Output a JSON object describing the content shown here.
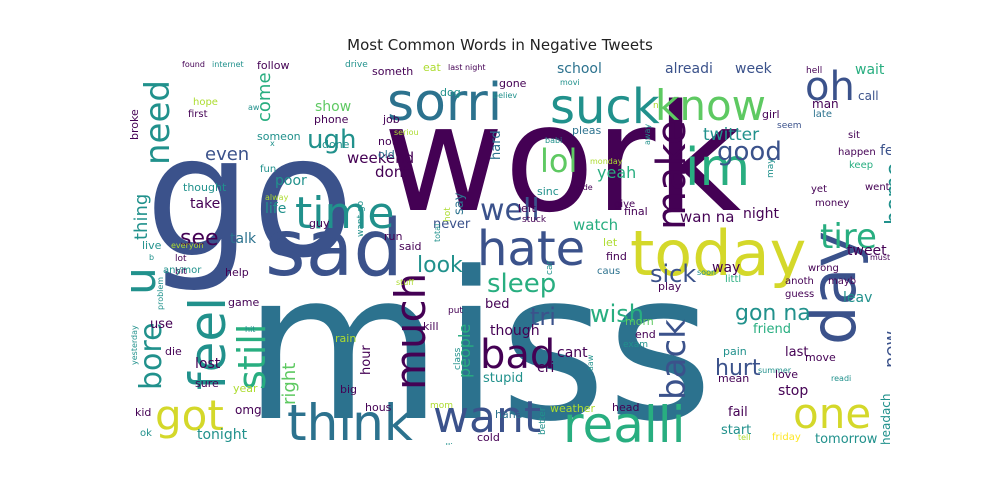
{
  "title": "Most Common Words in Negative Tweets",
  "colors": {
    "background": "#ffffff",
    "title_text": "#222222",
    "palette": [
      "#440154",
      "#3b528b",
      "#2c728e",
      "#21918c",
      "#28ae80",
      "#5ec962",
      "#addc30",
      "#fde725"
    ]
  },
  "words": [
    {
      "text": "miss",
      "weight": 1.0,
      "color": "#2c728e"
    },
    {
      "text": "work",
      "weight": 0.9,
      "color": "#440154"
    },
    {
      "text": "go",
      "weight": 0.85,
      "color": "#3b528b"
    },
    {
      "text": "sad",
      "weight": 0.55,
      "color": "#3b528b"
    },
    {
      "text": "today",
      "weight": 0.52,
      "color": "#d4d82a"
    },
    {
      "text": "day",
      "weight": 0.45,
      "color": "#3b528b"
    },
    {
      "text": "im",
      "weight": 0.42,
      "color": "#28ae80"
    },
    {
      "text": "feel",
      "weight": 0.42,
      "color": "#21918c"
    },
    {
      "text": "sorri",
      "weight": 0.4,
      "color": "#2c728e"
    },
    {
      "text": "suck",
      "weight": 0.38,
      "color": "#21918c"
    },
    {
      "text": "think",
      "weight": 0.38,
      "color": "#2c728e"
    },
    {
      "text": "realli",
      "weight": 0.36,
      "color": "#28ae80"
    },
    {
      "text": "hate",
      "weight": 0.36,
      "color": "#3b528b"
    },
    {
      "text": "time",
      "weight": 0.33,
      "color": "#21918c"
    },
    {
      "text": "know",
      "weight": 0.33,
      "color": "#5ec962"
    },
    {
      "text": "want",
      "weight": 0.33,
      "color": "#3b528b"
    },
    {
      "text": "got",
      "weight": 0.3,
      "color": "#d4d82a"
    },
    {
      "text": "one",
      "weight": 0.3,
      "color": "#d4d82a"
    },
    {
      "text": "much",
      "weight": 0.3,
      "color": "#440154"
    },
    {
      "text": "still",
      "weight": 0.3,
      "color": "#28ae80"
    },
    {
      "text": "bad",
      "weight": 0.28,
      "color": "#440154"
    },
    {
      "text": "oh",
      "weight": 0.28,
      "color": "#3b528b"
    },
    {
      "text": "make",
      "weight": 0.28,
      "color": "#440154"
    },
    {
      "text": "u",
      "weight": 0.28,
      "color": "#21918c"
    },
    {
      "text": "tire",
      "weight": 0.26,
      "color": "#28ae80"
    },
    {
      "text": "need",
      "weight": 0.26,
      "color": "#21918c"
    },
    {
      "text": "back",
      "weight": 0.25,
      "color": "#3b528b"
    },
    {
      "text": "bore",
      "weight": 0.24,
      "color": "#21918c"
    },
    {
      "text": "lol",
      "weight": 0.22,
      "color": "#5ec962"
    },
    {
      "text": "well",
      "weight": 0.2,
      "color": "#3b528b"
    },
    {
      "text": "good",
      "weight": 0.2,
      "color": "#3b528b"
    },
    {
      "text": "ugh",
      "weight": 0.18,
      "color": "#21918c"
    },
    {
      "text": "sleep",
      "weight": 0.18,
      "color": "#28ae80"
    },
    {
      "text": "look",
      "weight": 0.17,
      "color": "#21918c"
    },
    {
      "text": "wish",
      "weight": 0.17,
      "color": "#28ae80"
    },
    {
      "text": "gon na",
      "weight": 0.17,
      "color": "#21918c"
    },
    {
      "text": "sick",
      "weight": 0.17,
      "color": "#3b528b"
    },
    {
      "text": "see",
      "weight": 0.16,
      "color": "#440154"
    },
    {
      "text": "home",
      "weight": 0.16,
      "color": "#21918c"
    },
    {
      "text": "hurt",
      "weight": 0.16,
      "color": "#3b528b"
    },
    {
      "text": "tri",
      "weight": 0.16,
      "color": "#3b528b"
    },
    {
      "text": "come",
      "weight": 0.15,
      "color": "#28ae80"
    },
    {
      "text": "right",
      "weight": 0.15,
      "color": "#5ec962"
    },
    {
      "text": "thing",
      "weight": 0.14,
      "color": "#21918c"
    },
    {
      "text": "even",
      "weight": 0.14,
      "color": "#3b528b"
    },
    {
      "text": "new",
      "weight": 0.14,
      "color": "#3b528b"
    },
    {
      "text": "people",
      "weight": 0.14,
      "color": "#28ae80"
    },
    {
      "text": "twitter",
      "weight": 0.13,
      "color": "#21918c"
    },
    {
      "text": "yeah",
      "weight": 0.12,
      "color": "#28ae80"
    },
    {
      "text": "dont",
      "weight": 0.12,
      "color": "#440154"
    },
    {
      "text": "wait",
      "weight": 0.12,
      "color": "#28ae80"
    },
    {
      "text": "alreadi",
      "weight": 0.12,
      "color": "#3b528b"
    },
    {
      "text": "week",
      "weight": 0.12,
      "color": "#3b528b"
    },
    {
      "text": "school",
      "weight": 0.12,
      "color": "#2c728e"
    },
    {
      "text": "show",
      "weight": 0.11,
      "color": "#5ec962"
    },
    {
      "text": "weekend",
      "weight": 0.11,
      "color": "#440154"
    },
    {
      "text": "poor",
      "weight": 0.11,
      "color": "#21918c"
    },
    {
      "text": "take",
      "weight": 0.11,
      "color": "#440154"
    },
    {
      "text": "life",
      "weight": 0.11,
      "color": "#21918c"
    },
    {
      "text": "talk",
      "weight": 0.11,
      "color": "#2c728e"
    },
    {
      "text": "hard",
      "weight": 0.1,
      "color": "#2c728e"
    },
    {
      "text": "wan na",
      "weight": 0.11,
      "color": "#440154"
    },
    {
      "text": "night",
      "weight": 0.11,
      "color": "#440154"
    },
    {
      "text": "watch",
      "weight": 0.12,
      "color": "#28ae80"
    },
    {
      "text": "never",
      "weight": 0.11,
      "color": "#3b528b"
    },
    {
      "text": "say",
      "weight": 0.1,
      "color": "#2c728e"
    },
    {
      "text": "way",
      "weight": 0.11,
      "color": "#440154"
    },
    {
      "text": "tweet",
      "weight": 0.11,
      "color": "#440154"
    },
    {
      "text": "leav",
      "weight": 0.11,
      "color": "#21918c"
    },
    {
      "text": "bed",
      "weight": 0.11,
      "color": "#440154"
    },
    {
      "text": "though",
      "weight": 0.11,
      "color": "#440154"
    },
    {
      "text": "cant",
      "weight": 0.11,
      "color": "#440154"
    },
    {
      "text": "cri",
      "weight": 0.11,
      "color": "#440154"
    },
    {
      "text": "stupid",
      "weight": 0.11,
      "color": "#21918c"
    },
    {
      "text": "last",
      "weight": 0.11,
      "color": "#440154"
    },
    {
      "text": "stop",
      "weight": 0.11,
      "color": "#440154"
    },
    {
      "text": "friend",
      "weight": 0.11,
      "color": "#28ae80"
    },
    {
      "text": "lost",
      "weight": 0.11,
      "color": "#440154"
    },
    {
      "text": "omg",
      "weight": 0.1,
      "color": "#440154"
    },
    {
      "text": "tonight",
      "weight": 0.11,
      "color": "#21918c"
    },
    {
      "text": "use",
      "weight": 0.1,
      "color": "#440154"
    },
    {
      "text": "hour",
      "weight": 0.1,
      "color": "#440154"
    },
    {
      "text": "fail",
      "weight": 0.1,
      "color": "#440154"
    },
    {
      "text": "start",
      "weight": 0.1,
      "color": "#21918c"
    },
    {
      "text": "tomorrow",
      "weight": 0.1,
      "color": "#21918c"
    },
    {
      "text": "headach",
      "weight": 0.1,
      "color": "#21918c"
    },
    {
      "text": "call",
      "weight": 0.1,
      "color": "#3b528b"
    },
    {
      "text": "man",
      "weight": 0.1,
      "color": "#440154"
    },
    {
      "text": "happen",
      "weight": 0.1,
      "color": "#440154"
    },
    {
      "text": "sit",
      "weight": 0.09,
      "color": "#440154"
    },
    {
      "text": "feel",
      "weight": 0.09,
      "color": "#3b528b"
    },
    {
      "text": "went",
      "weight": 0.09,
      "color": "#440154"
    },
    {
      "text": "keep",
      "weight": 0.08,
      "color": "#28ae80"
    },
    {
      "text": "late",
      "weight": 0.08,
      "color": "#2c728e"
    },
    {
      "text": "girl",
      "weight": 0.08,
      "color": "#440154"
    },
    {
      "text": "seem",
      "weight": 0.08,
      "color": "#3b528b"
    },
    {
      "text": "pleas",
      "weight": 0.08,
      "color": "#2c728e"
    },
    {
      "text": "hell",
      "weight": 0.07,
      "color": "#440154"
    },
    {
      "text": "long",
      "weight": 0.07,
      "color": "#2c728e"
    },
    {
      "text": "money",
      "weight": 0.07,
      "color": "#440154"
    },
    {
      "text": "yet",
      "weight": 0.07,
      "color": "#440154"
    },
    {
      "text": "may",
      "weight": 0.07,
      "color": "#21918c"
    },
    {
      "text": "must",
      "weight": 0.06,
      "color": "#440154"
    },
    {
      "text": "without",
      "weight": 0.07,
      "color": "#2c728e"
    },
    {
      "text": "wrong",
      "weight": 0.07,
      "color": "#440154"
    },
    {
      "text": "littl",
      "weight": 0.07,
      "color": "#28ae80"
    },
    {
      "text": "anoth",
      "weight": 0.07,
      "color": "#440154"
    },
    {
      "text": "guess",
      "weight": 0.07,
      "color": "#440154"
    },
    {
      "text": "mayb",
      "weight": 0.07,
      "color": "#440154"
    },
    {
      "text": "summer",
      "weight": 0.06,
      "color": "#21918c"
    },
    {
      "text": "readi",
      "weight": 0.06,
      "color": "#21918c"
    },
    {
      "text": "love",
      "weight": 0.07,
      "color": "#440154"
    },
    {
      "text": "move",
      "weight": 0.07,
      "color": "#440154"
    },
    {
      "text": "friday",
      "weight": 0.07,
      "color": "#fde725"
    },
    {
      "text": "mean",
      "weight": 0.07,
      "color": "#440154"
    },
    {
      "text": "pain",
      "weight": 0.07,
      "color": "#21918c"
    },
    {
      "text": "head",
      "weight": 0.07,
      "color": "#440154"
    },
    {
      "text": "weather",
      "weight": 0.07,
      "color": "#addc30"
    },
    {
      "text": "better",
      "weight": 0.06,
      "color": "#21918c"
    },
    {
      "text": "tell",
      "weight": 0.06,
      "color": "#addc30"
    },
    {
      "text": "haha",
      "weight": 0.07,
      "color": "#2c728e"
    },
    {
      "text": "cold",
      "weight": 0.07,
      "color": "#440154"
    },
    {
      "text": "sadli",
      "weight": 0.06,
      "color": "#21918c"
    },
    {
      "text": "mom",
      "weight": 0.06,
      "color": "#addc30"
    },
    {
      "text": "hous",
      "weight": 0.07,
      "color": "#440154"
    },
    {
      "text": "big",
      "weight": 0.07,
      "color": "#440154"
    },
    {
      "text": "rain",
      "weight": 0.07,
      "color": "#addc30"
    },
    {
      "text": "class",
      "weight": 0.06,
      "color": "#21918c"
    },
    {
      "text": "exam",
      "weight": 0.06,
      "color": "#21918c"
    },
    {
      "text": "end",
      "weight": 0.07,
      "color": "#440154"
    },
    {
      "text": "morn",
      "weight": 0.07,
      "color": "#5ec962"
    },
    {
      "text": "aaw",
      "weight": 0.05,
      "color": "#21918c"
    },
    {
      "text": "play",
      "weight": 0.07,
      "color": "#440154"
    },
    {
      "text": "find",
      "weight": 0.07,
      "color": "#440154"
    },
    {
      "text": "caus",
      "weight": 0.07,
      "color": "#2c728e"
    },
    {
      "text": "soon",
      "weight": 0.06,
      "color": "#21918c"
    },
    {
      "text": "let",
      "weight": 0.07,
      "color": "#addc30"
    },
    {
      "text": "car",
      "weight": 0.06,
      "color": "#21918c"
    },
    {
      "text": "put",
      "weight": 0.06,
      "color": "#440154"
    },
    {
      "text": "kill",
      "weight": 0.07,
      "color": "#440154"
    },
    {
      "text": "said",
      "weight": 0.07,
      "color": "#440154"
    },
    {
      "text": "run",
      "weight": 0.07,
      "color": "#440154"
    },
    {
      "text": "guy",
      "weight": 0.07,
      "color": "#440154"
    },
    {
      "text": "want go",
      "weight": 0.06,
      "color": "#21918c"
    },
    {
      "text": "stuff",
      "weight": 0.05,
      "color": "#addc30"
    },
    {
      "text": "stuck",
      "weight": 0.06,
      "color": "#440154"
    },
    {
      "text": "final",
      "weight": 0.07,
      "color": "#440154"
    },
    {
      "text": "give",
      "weight": 0.07,
      "color": "#440154"
    },
    {
      "text": "made",
      "weight": 0.06,
      "color": "#440154"
    },
    {
      "text": "sinc",
      "weight": 0.07,
      "color": "#21918c"
    },
    {
      "text": "left",
      "weight": 0.07,
      "color": "#440154"
    },
    {
      "text": "hot",
      "weight": 0.06,
      "color": "#addc30"
    },
    {
      "text": "total",
      "weight": 0.05,
      "color": "#21918c"
    },
    {
      "text": "monday",
      "weight": 0.05,
      "color": "#addc30"
    },
    {
      "text": "away",
      "weight": 0.05,
      "color": "#21918c"
    },
    {
      "text": "noth",
      "weight": 0.07,
      "color": "#440154"
    },
    {
      "text": "old",
      "weight": 0.07,
      "color": "#2c728e"
    },
    {
      "text": "done",
      "weight": 0.07,
      "color": "#21918c"
    },
    {
      "text": "job",
      "weight": 0.07,
      "color": "#440154"
    },
    {
      "text": "seriou",
      "weight": 0.06,
      "color": "#addc30"
    },
    {
      "text": "someon",
      "weight": 0.07,
      "color": "#21918c"
    },
    {
      "text": "phone",
      "weight": 0.07,
      "color": "#440154"
    },
    {
      "text": "x",
      "weight": 0.06,
      "color": "#21918c"
    },
    {
      "text": "babi",
      "weight": 0.05,
      "color": "#21918c"
    },
    {
      "text": "dog",
      "weight": 0.07,
      "color": "#21918c"
    },
    {
      "text": "gone",
      "weight": 0.07,
      "color": "#440154"
    },
    {
      "text": "believ",
      "weight": 0.06,
      "color": "#21918c"
    },
    {
      "text": "eat",
      "weight": 0.07,
      "color": "#addc30"
    },
    {
      "text": "last night",
      "weight": 0.06,
      "color": "#440154"
    },
    {
      "text": "movi",
      "weight": 0.05,
      "color": "#21918c"
    },
    {
      "text": "someth",
      "weight": 0.07,
      "color": "#440154"
    },
    {
      "text": "drive",
      "weight": 0.06,
      "color": "#21918c"
    },
    {
      "text": "follow",
      "weight": 0.07,
      "color": "#440154"
    },
    {
      "text": "found",
      "weight": 0.06,
      "color": "#440154"
    },
    {
      "text": "internet",
      "weight": 0.05,
      "color": "#21918c"
    },
    {
      "text": "hope",
      "weight": 0.07,
      "color": "#addc30"
    },
    {
      "text": "first",
      "weight": 0.07,
      "color": "#440154"
    },
    {
      "text": "aw",
      "weight": 0.05,
      "color": "#21918c"
    },
    {
      "text": "broke",
      "weight": 0.07,
      "color": "#440154"
    },
    {
      "text": "fun",
      "weight": 0.07,
      "color": "#21918c"
    },
    {
      "text": "thought",
      "weight": 0.07,
      "color": "#21918c"
    },
    {
      "text": "alway",
      "weight": 0.06,
      "color": "#addc30"
    },
    {
      "text": "b",
      "weight": 0.06,
      "color": "#21918c"
    },
    {
      "text": "live",
      "weight": 0.07,
      "color": "#21918c"
    },
    {
      "text": "everyon",
      "weight": 0.05,
      "color": "#addc30"
    },
    {
      "text": "lot",
      "weight": 0.07,
      "color": "#440154"
    },
    {
      "text": "bit",
      "weight": 0.06,
      "color": "#440154"
    },
    {
      "text": "anymor",
      "weight": 0.07,
      "color": "#21918c"
    },
    {
      "text": "help",
      "weight": 0.07,
      "color": "#440154"
    },
    {
      "text": "problem",
      "weight": 0.06,
      "color": "#21918c"
    },
    {
      "text": "game",
      "weight": 0.07,
      "color": "#440154"
    },
    {
      "text": "hit",
      "weight": 0.06,
      "color": "#21918c"
    },
    {
      "text": "die",
      "weight": 0.07,
      "color": "#440154"
    },
    {
      "text": "sure",
      "weight": 0.07,
      "color": "#440154"
    },
    {
      "text": "year",
      "weight": 0.07,
      "color": "#addc30"
    },
    {
      "text": "kid",
      "weight": 0.07,
      "color": "#440154"
    },
    {
      "text": "ok",
      "weight": 0.07,
      "color": "#21918c"
    },
    {
      "text": "yesterday",
      "weight": 0.05,
      "color": "#21918c"
    },
    {
      "text": "n",
      "weight": 0.06,
      "color": "#addc30"
    }
  ]
}
